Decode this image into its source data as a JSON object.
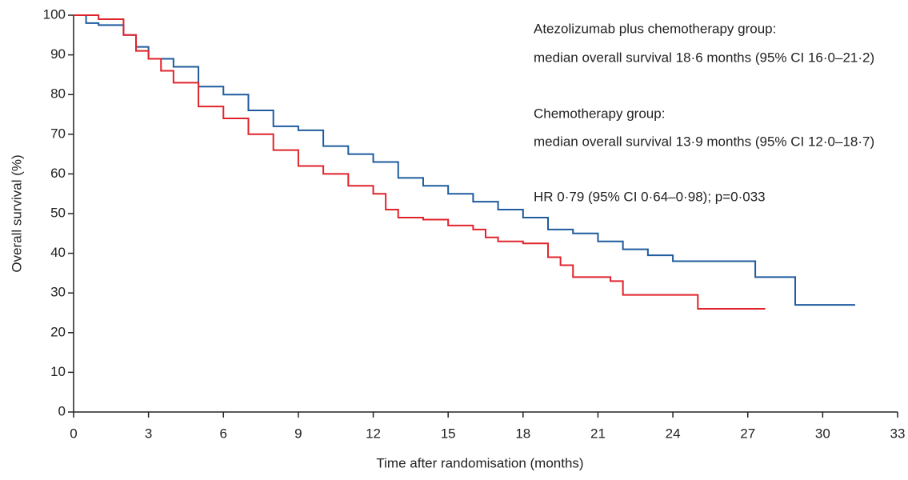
{
  "chart_data": {
    "type": "step",
    "x_label": "Time after randomisation (months)",
    "y_label": "Overall survival  (%)",
    "annotations": [
      "Atezolizumab plus chemotherapy group:",
      "median overall survival 18·6 months (95% CI 16·0–21·2)",
      "Chemotherapy group:",
      "median overall survival 13·9 months (95% CI 12·0–18·7)",
      "HR 0·79 (95% CI 0·64–0·98); p=0·033"
    ],
    "xlim": [
      0,
      33
    ],
    "xticks": [
      0,
      3,
      6,
      9,
      12,
      15,
      18,
      21,
      24,
      27,
      30,
      33
    ],
    "ylim": [
      0,
      100
    ],
    "yticks": [
      0,
      10,
      20,
      30,
      40,
      50,
      60,
      70,
      80,
      90,
      100
    ],
    "series": [
      {
        "color": "#1f5b9e",
        "x": [
          0,
          0.5,
          0.5,
          1,
          1,
          2,
          2,
          2.5,
          2.5,
          3,
          3,
          4,
          4,
          5,
          5,
          6,
          6,
          7,
          7,
          8,
          8,
          9,
          9,
          10,
          10,
          11,
          11,
          12,
          12,
          13,
          13,
          14,
          14,
          15,
          15,
          16,
          16,
          17,
          17,
          18,
          18,
          19,
          19,
          20,
          20,
          21,
          21,
          22,
          22,
          23,
          23,
          24,
          24,
          27.3,
          27.3,
          28.9,
          28.9,
          31.3
        ],
        "values": [
          100,
          100,
          98,
          98,
          97.5,
          97.5,
          95,
          95,
          92,
          92,
          89,
          89,
          87,
          87,
          82,
          82,
          80,
          80,
          76,
          76,
          72,
          72,
          71,
          71,
          67,
          67,
          65,
          65,
          63,
          63,
          59,
          59,
          57,
          57,
          55,
          55,
          53,
          53,
          51,
          51,
          49,
          49,
          46,
          46,
          45,
          45,
          43,
          43,
          41,
          41,
          39.5,
          39.5,
          38,
          38,
          34,
          34,
          27,
          27
        ]
      },
      {
        "color": "#e0232b",
        "x": [
          0,
          1,
          1,
          2,
          2,
          2.5,
          2.5,
          3,
          3,
          3.5,
          3.5,
          4,
          4,
          5,
          5,
          6,
          6,
          7,
          7,
          8,
          8,
          9,
          9,
          10,
          10,
          11,
          11,
          12,
          12,
          12.5,
          12.5,
          13,
          13,
          14,
          14,
          15,
          15,
          16,
          16,
          16.5,
          16.5,
          17,
          17,
          18,
          18,
          19,
          19,
          19.5,
          19.5,
          20,
          20,
          21.5,
          21.5,
          22,
          22,
          25,
          25,
          27.7
        ],
        "values": [
          100,
          100,
          99,
          99,
          95,
          95,
          91,
          91,
          89,
          89,
          86,
          86,
          83,
          83,
          77,
          77,
          74,
          74,
          70,
          70,
          66,
          66,
          62,
          62,
          60,
          60,
          57,
          57,
          55,
          55,
          51,
          51,
          49,
          49,
          48.5,
          48.5,
          47,
          47,
          46,
          46,
          44,
          44,
          43,
          43,
          42.5,
          42.5,
          39,
          39,
          37,
          37,
          34,
          34,
          33,
          33,
          29.5,
          29.5,
          26,
          26
        ]
      }
    ]
  }
}
